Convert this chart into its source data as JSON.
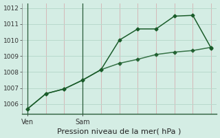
{
  "line1_x": [
    0,
    1,
    2,
    3,
    4,
    5,
    6,
    7,
    8,
    9,
    10
  ],
  "line1_y": [
    1005.7,
    1006.65,
    1006.95,
    1007.5,
    1008.15,
    1010.0,
    1010.7,
    1010.7,
    1011.5,
    1011.55,
    1009.5
  ],
  "line2_x": [
    0,
    1,
    2,
    3,
    4,
    5,
    6,
    7,
    8,
    9,
    10
  ],
  "line2_y": [
    1005.7,
    1006.65,
    1006.95,
    1007.5,
    1008.15,
    1008.55,
    1008.8,
    1009.1,
    1009.25,
    1009.35,
    1009.55
  ],
  "ven_x": 0,
  "sam_x": 3,
  "xlim": [
    -0.3,
    10.3
  ],
  "xlabel": "Pression niveau de la mer( hPa )",
  "ylim": [
    1005.4,
    1012.3
  ],
  "yticks": [
    1006,
    1007,
    1008,
    1009,
    1010,
    1011,
    1012
  ],
  "bg_color": "#d4ede4",
  "grid_h_color": "#b8d9cc",
  "grid_v_color": "#d4b8b8",
  "line_color": "#1a5c2a",
  "vline_color": "#2a5c3a",
  "marker": "D",
  "markersize": 2.5,
  "linewidth": 1.1,
  "xlabel_fontsize": 8,
  "tick_fontsize": 6.5,
  "label_fontsize": 7
}
